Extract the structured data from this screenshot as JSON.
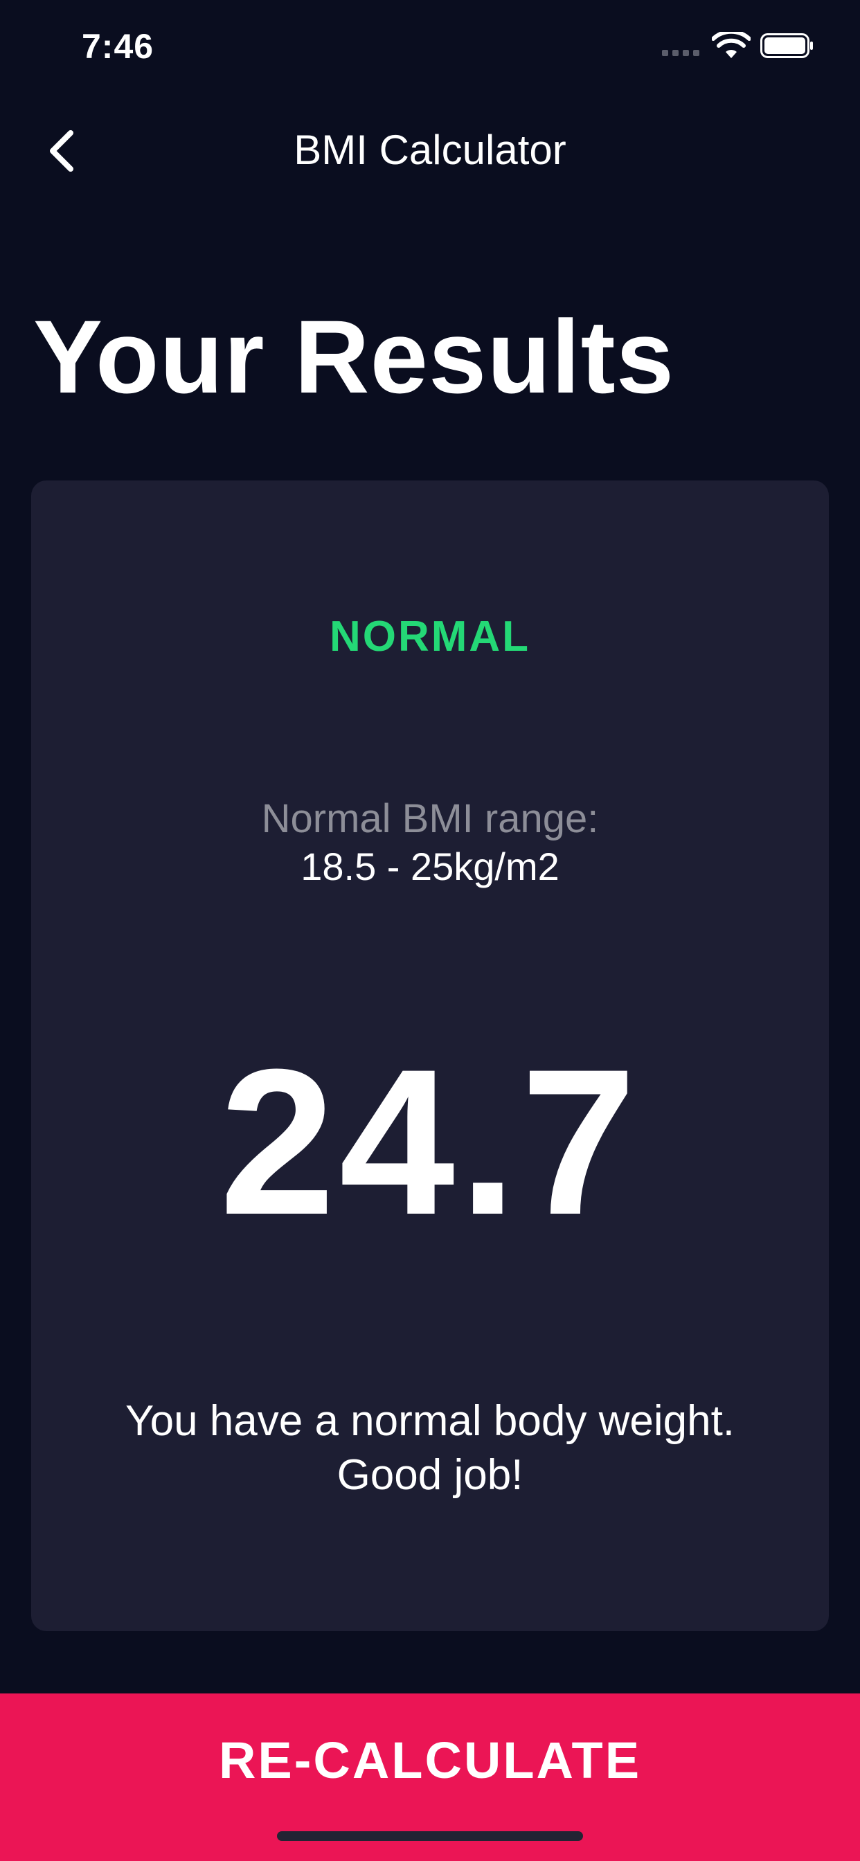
{
  "status_bar": {
    "time": "7:46"
  },
  "nav": {
    "title": "BMI Calculator"
  },
  "page": {
    "title": "Your Results"
  },
  "result": {
    "status": "NORMAL",
    "range_label": "Normal BMI range:",
    "range_value": "18.5 - 25kg/m2",
    "bmi": "24.7",
    "interpretation_line1": "You have a normal body weight.",
    "interpretation_line2": "Good job!"
  },
  "button": {
    "label": "RE-CALCULATE"
  },
  "colors": {
    "background": "#0a0d1f",
    "card": "#1d1e33",
    "status_green": "#24d876",
    "accent_pink": "#eb1555",
    "muted_text": "#8d8e98"
  },
  "icons": {
    "back": "chevron-left-icon",
    "wifi": "wifi-icon",
    "battery": "battery-icon"
  }
}
